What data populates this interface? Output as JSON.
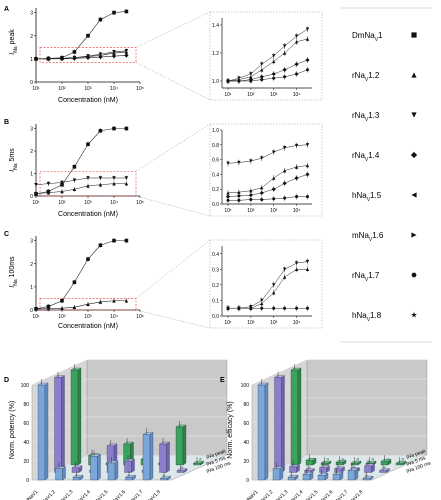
{
  "panels": {
    "A": {
      "letter": "A",
      "ylabel_main": "I",
      "ylabel_sub": "Na",
      "ylabel_rest": " peak"
    },
    "B": {
      "letter": "B",
      "ylabel_main": "I",
      "ylabel_sub": "Na",
      "ylabel_rest": " 5ms"
    },
    "C": {
      "letter": "C",
      "ylabel_main": "I",
      "ylabel_sub": "Na",
      "ylabel_rest": " 100ms"
    },
    "D": {
      "letter": "D",
      "ylabel": "Norm. potency (%)"
    },
    "E": {
      "letter": "E",
      "ylabel": "Norm. efficacy (%)"
    }
  },
  "xlabel": "Concentration (nM)",
  "legend": [
    {
      "pre": "DmNa",
      "sub": "V",
      "post": "1",
      "marker": "square"
    },
    {
      "pre": "rNa",
      "sub": "V",
      "post": "1.2",
      "marker": "triangle-up"
    },
    {
      "pre": "rNa",
      "sub": "V",
      "post": "1.3",
      "marker": "triangle-down"
    },
    {
      "pre": "rNa",
      "sub": "V",
      "post": "1.4",
      "marker": "diamond"
    },
    {
      "pre": "hNa",
      "sub": "V",
      "post": "1.5",
      "marker": "triangle-left"
    },
    {
      "pre": "mNa",
      "sub": "V",
      "post": "1.6",
      "marker": "triangle-right"
    },
    {
      "pre": "rNa",
      "sub": "V",
      "post": "1.7",
      "marker": "hexagon"
    },
    {
      "pre": "hNa",
      "sub": "V",
      "post": "1.8",
      "marker": "star"
    }
  ],
  "bar3d_categories": [
    "DmNaV1",
    "rNaV1.2",
    "rNaV1.3",
    "rNaV1.4",
    "hNaV1.5",
    "mNaV1.6",
    "rNaV1.7",
    "rNaV1.8"
  ],
  "bar3d_series": [
    "INa 100 ms",
    "INa 5 ms",
    "INa peak"
  ],
  "chart_data": [
    {
      "type": "line",
      "panel": "A-main",
      "xscale": "log",
      "xlim": [
        10,
        100000
      ],
      "ylim": [
        0,
        3.2
      ],
      "yticks": [
        0,
        1,
        2,
        3
      ],
      "xticks": [
        "10¹",
        "10²",
        "10³",
        "10⁴",
        "10⁵"
      ],
      "x": [
        10,
        30,
        100,
        300,
        1000,
        3000,
        10000,
        30000
      ],
      "series": [
        {
          "marker": "square",
          "values": [
            1.0,
            1.02,
            1.05,
            1.3,
            2.0,
            2.7,
            3.0,
            3.05
          ]
        },
        {
          "marker": "triangle-up",
          "values": [
            1.0,
            1.0,
            1.02,
            1.05,
            1.1,
            1.15,
            1.25,
            1.3
          ]
        },
        {
          "marker": "triangle-down",
          "values": [
            1.0,
            1.0,
            1.02,
            1.05,
            1.12,
            1.2,
            1.3,
            1.35
          ]
        },
        {
          "marker": "diamond",
          "values": [
            1.0,
            1.0,
            1.0,
            1.02,
            1.05,
            1.08,
            1.12,
            1.15
          ]
        }
      ]
    },
    {
      "type": "line",
      "panel": "A-inset",
      "xscale": "log",
      "ylim": [
        0.95,
        1.45
      ],
      "yticks": [
        "1.0",
        "1.2",
        "1.4"
      ],
      "x": [
        10,
        30,
        100,
        300,
        1000,
        3000,
        10000,
        30000
      ],
      "series": [
        {
          "marker": "triangle-down",
          "values": [
            1.0,
            1.02,
            1.05,
            1.12,
            1.18,
            1.25,
            1.32,
            1.37
          ]
        },
        {
          "marker": "triangle-up",
          "values": [
            1.0,
            1.01,
            1.03,
            1.08,
            1.14,
            1.2,
            1.28,
            1.3
          ]
        },
        {
          "marker": "diamond",
          "values": [
            1.0,
            1.0,
            1.01,
            1.03,
            1.05,
            1.08,
            1.12,
            1.15
          ]
        },
        {
          "marker": "hexagon",
          "values": [
            1.0,
            1.0,
            1.0,
            1.01,
            1.02,
            1.03,
            1.05,
            1.08
          ]
        }
      ]
    },
    {
      "type": "line",
      "panel": "B-main",
      "xscale": "log",
      "ylim": [
        0,
        3.2
      ],
      "yticks": [
        0,
        1,
        2,
        3
      ],
      "x": [
        10,
        30,
        100,
        300,
        1000,
        3000,
        10000,
        30000
      ],
      "series": [
        {
          "marker": "square",
          "values": [
            0.1,
            0.2,
            0.5,
            1.3,
            2.3,
            2.9,
            3.0,
            3.0
          ]
        },
        {
          "marker": "triangle-down",
          "values": [
            0.5,
            0.55,
            0.6,
            0.7,
            0.8,
            0.8,
            0.8,
            0.8
          ]
        },
        {
          "marker": "triangle-up",
          "values": [
            0.1,
            0.15,
            0.2,
            0.3,
            0.45,
            0.5,
            0.55,
            0.55
          ]
        }
      ]
    },
    {
      "type": "line",
      "panel": "B-inset",
      "xscale": "log",
      "ylim": [
        0,
        1.0
      ],
      "yticks": [
        "0.0",
        "0.2",
        "0.4",
        "0.6",
        "0.8",
        "1.0"
      ],
      "x": [
        10,
        30,
        100,
        300,
        1000,
        3000,
        10000,
        30000
      ],
      "series": [
        {
          "marker": "triangle-down",
          "values": [
            0.55,
            0.56,
            0.58,
            0.62,
            0.7,
            0.76,
            0.79,
            0.8
          ]
        },
        {
          "marker": "triangle-up",
          "values": [
            0.15,
            0.16,
            0.18,
            0.22,
            0.35,
            0.45,
            0.5,
            0.52
          ]
        },
        {
          "marker": "diamond",
          "values": [
            0.1,
            0.11,
            0.12,
            0.15,
            0.2,
            0.28,
            0.35,
            0.4
          ]
        },
        {
          "marker": "hexagon",
          "values": [
            0.05,
            0.05,
            0.06,
            0.06,
            0.07,
            0.08,
            0.1,
            0.1
          ]
        }
      ]
    },
    {
      "type": "line",
      "panel": "C-main",
      "xscale": "log",
      "ylim": [
        0,
        3.2
      ],
      "yticks": [
        0,
        1,
        2,
        3
      ],
      "x": [
        10,
        30,
        100,
        300,
        1000,
        3000,
        10000,
        30000
      ],
      "series": [
        {
          "marker": "square",
          "values": [
            0.05,
            0.15,
            0.4,
            1.2,
            2.2,
            2.8,
            3.0,
            3.0
          ]
        },
        {
          "marker": "triangle-up",
          "values": [
            0.05,
            0.05,
            0.08,
            0.12,
            0.25,
            0.35,
            0.4,
            0.4
          ]
        }
      ]
    },
    {
      "type": "line",
      "panel": "C-inset",
      "xscale": "log",
      "ylim": [
        0,
        0.45
      ],
      "yticks": [
        "0.0",
        "0.1",
        "0.2",
        "0.3",
        "0.4"
      ],
      "x": [
        10,
        30,
        100,
        300,
        1000,
        3000,
        10000,
        30000
      ],
      "series": [
        {
          "marker": "triangle-down",
          "values": [
            0.05,
            0.05,
            0.06,
            0.1,
            0.2,
            0.3,
            0.34,
            0.35
          ]
        },
        {
          "marker": "triangle-up",
          "values": [
            0.05,
            0.05,
            0.05,
            0.08,
            0.15,
            0.25,
            0.3,
            0.3
          ]
        },
        {
          "marker": "hexagon",
          "values": [
            0.05,
            0.05,
            0.05,
            0.05,
            0.05,
            0.05,
            0.05,
            0.05
          ]
        }
      ]
    },
    {
      "type": "bar",
      "panel": "D",
      "ylim": [
        0,
        100
      ],
      "yticks": [
        0,
        20,
        40,
        60,
        80,
        100
      ],
      "categories": [
        "DmNaV1",
        "rNaV1.2",
        "rNaV1.3",
        "rNaV1.4",
        "hNaV1.5",
        "mNaV1.6",
        "rNaV1.7",
        "rNaV1.8"
      ],
      "series": [
        {
          "name": "INa peak",
          "values": [
            100,
            12,
            3,
            25,
            18,
            3,
            48,
            2
          ]
        },
        {
          "name": "INa 5 ms",
          "values": [
            100,
            5,
            2,
            28,
            12,
            2,
            30,
            2
          ]
        },
        {
          "name": "INa 100 ms",
          "values": [
            100,
            10,
            2,
            22,
            6,
            2,
            40,
            2
          ]
        }
      ]
    },
    {
      "type": "bar",
      "panel": "E",
      "ylim": [
        0,
        100
      ],
      "yticks": [
        0,
        20,
        40,
        60,
        80,
        100
      ],
      "categories": [
        "DmNaV1",
        "rNaV1.2",
        "rNaV1.3",
        "rNaV1.4",
        "hNaV1.5",
        "mNaV1.6",
        "rNaV1.7",
        "rNaV1.8"
      ],
      "series": [
        {
          "name": "INa peak",
          "values": [
            100,
            12,
            3,
            6,
            5,
            6,
            10,
            2
          ]
        },
        {
          "name": "INa 5 ms",
          "values": [
            100,
            6,
            2,
            5,
            4,
            3,
            7,
            2
          ]
        },
        {
          "name": "INa 100 ms",
          "values": [
            100,
            5,
            2,
            3,
            2,
            2,
            4,
            2
          ]
        }
      ]
    }
  ]
}
